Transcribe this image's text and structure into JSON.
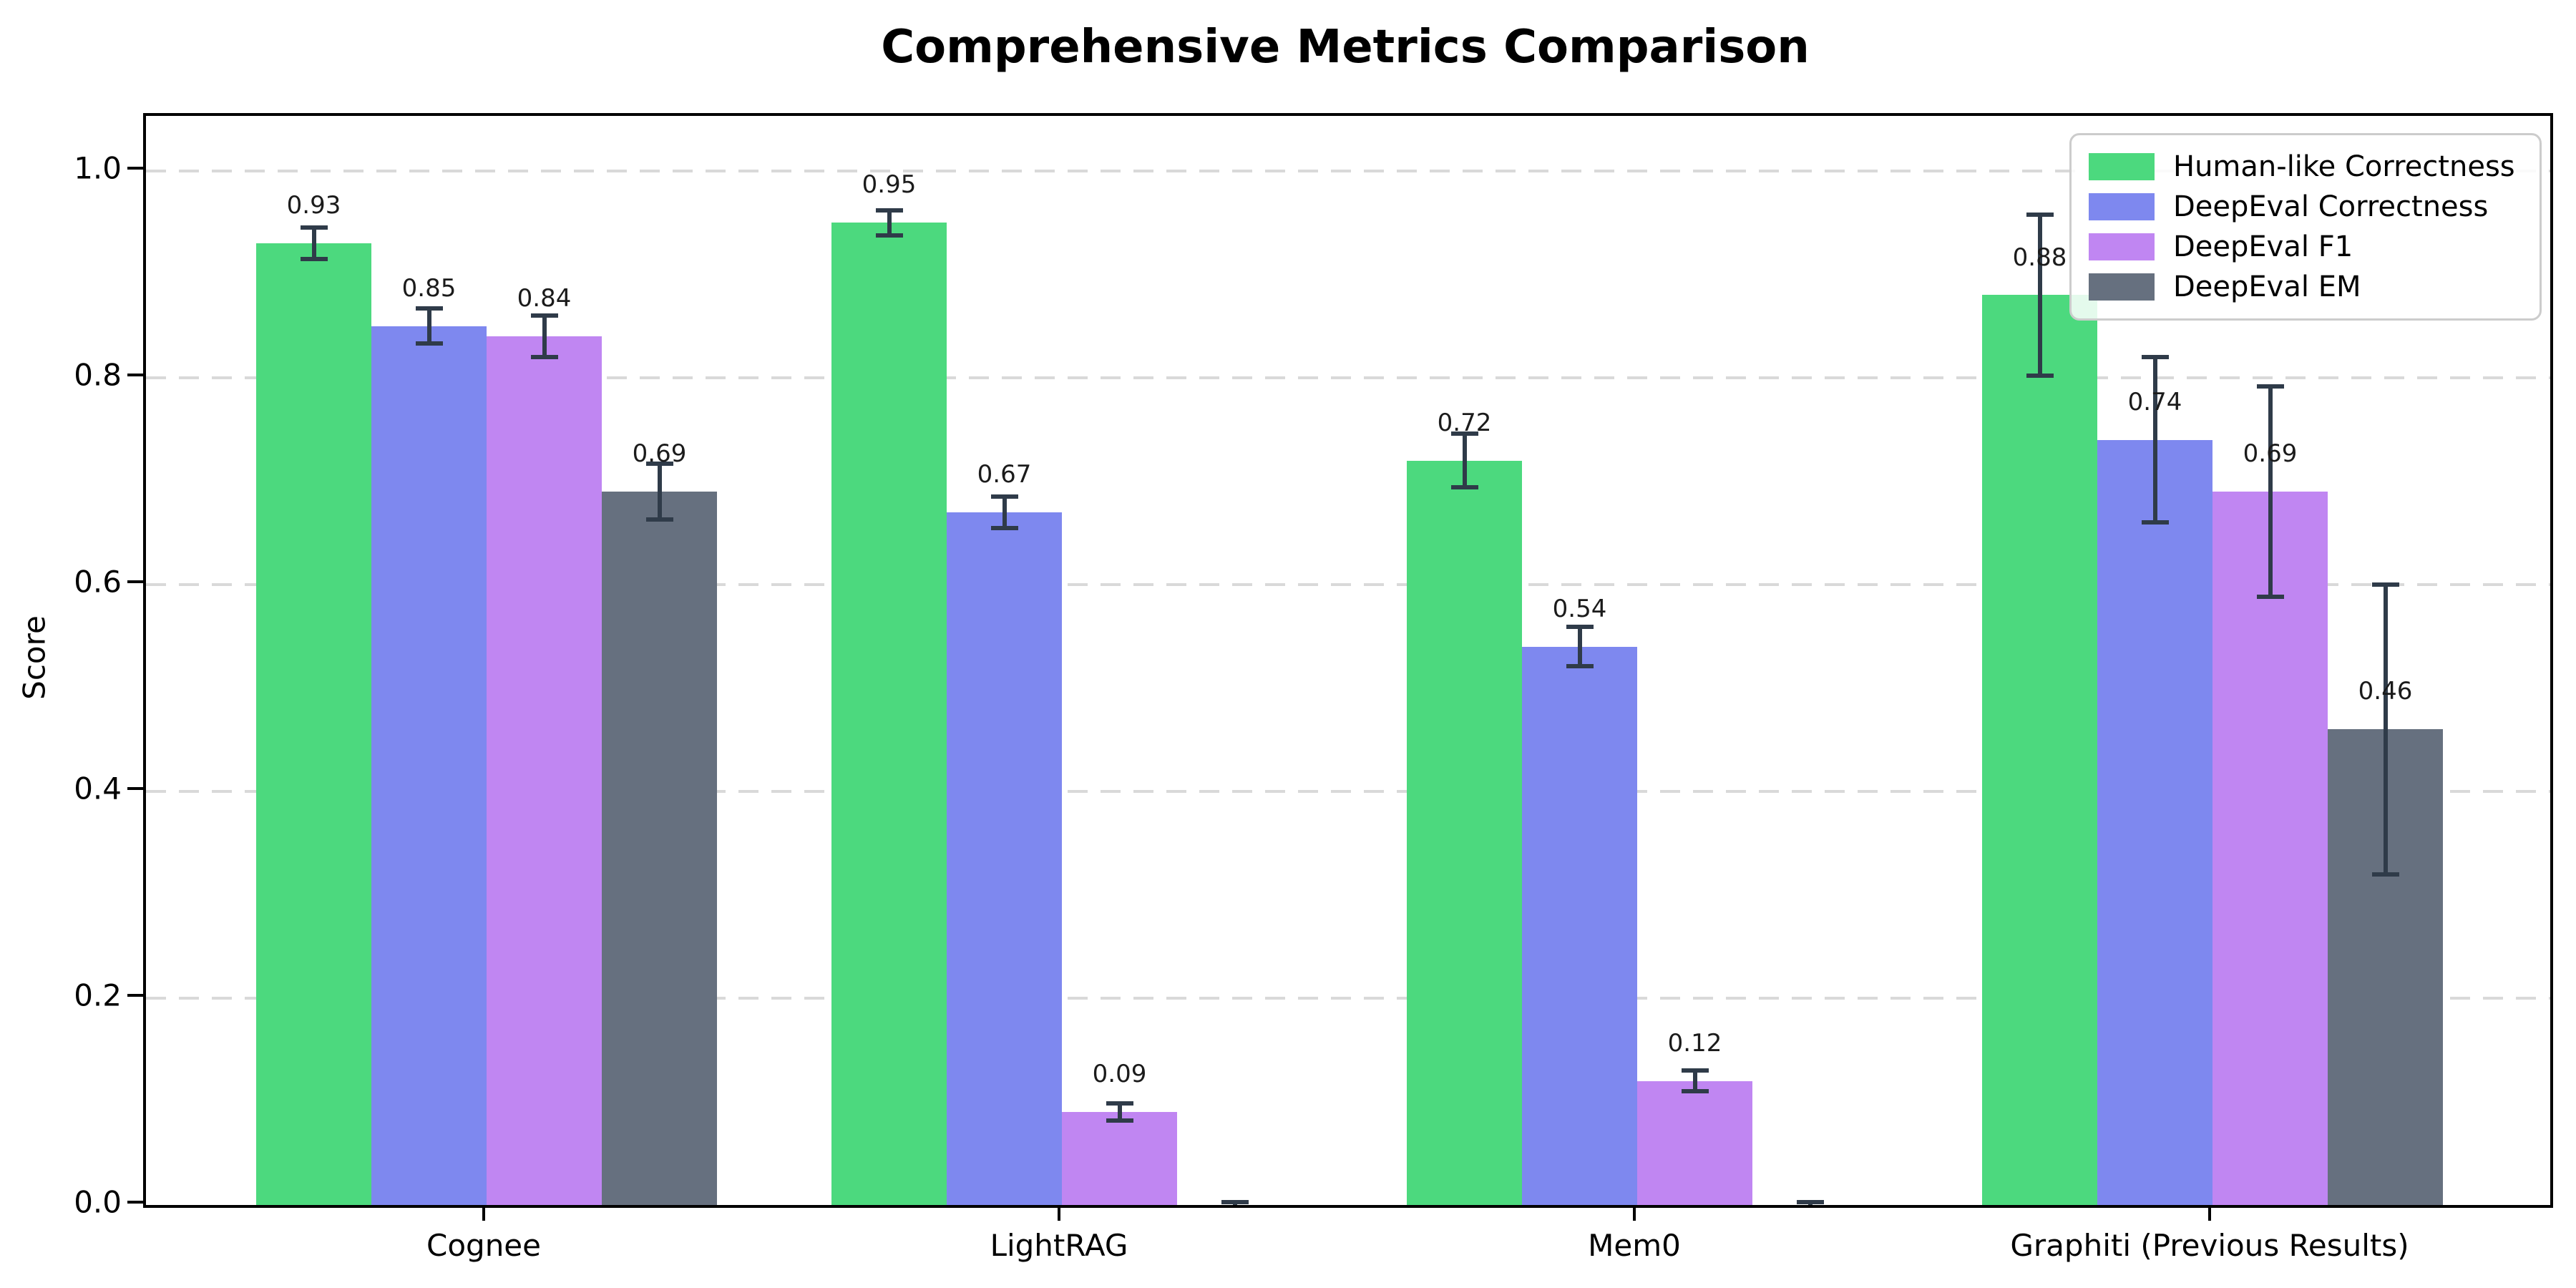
{
  "title": "Comprehensive Metrics Comparison",
  "y_axis": {
    "label": "Score",
    "tick_labels": [
      "0.0",
      "0.2",
      "0.4",
      "0.6",
      "0.8",
      "1.0"
    ]
  },
  "legend": {
    "entries": [
      "Human-like Correctness",
      "DeepEval Correctness",
      "DeepEval F1",
      "DeepEval EM"
    ],
    "position": "upper right"
  },
  "chart_data": {
    "type": "bar",
    "title": "Comprehensive Metrics Comparison",
    "xlabel": "",
    "ylabel": "Score",
    "ylim": [
      0,
      1.05
    ],
    "yticks": [
      0,
      0.2,
      0.4,
      0.6,
      0.8,
      1.0
    ],
    "grid": "horizontal dashed",
    "legend_position": "upper right",
    "categories": [
      "Cognee",
      "LightRAG",
      "Mem0",
      "Graphiti (Previous Results)"
    ],
    "series": [
      {
        "name": "Human-like Correctness",
        "color": "#4cd97e",
        "values": [
          0.93,
          0.95,
          0.72,
          0.88
        ],
        "errors": [
          0.015,
          0.012,
          0.026,
          0.078
        ]
      },
      {
        "name": "DeepEval Correctness",
        "color": "#7e88ef",
        "values": [
          0.85,
          0.67,
          0.54,
          0.74
        ],
        "errors": [
          0.017,
          0.015,
          0.019,
          0.08
        ]
      },
      {
        "name": "DeepEval F1",
        "color": "#c086f2",
        "values": [
          0.84,
          0.09,
          0.12,
          0.69
        ],
        "errors": [
          0.02,
          0.008,
          0.01,
          0.102
        ]
      },
      {
        "name": "DeepEval EM",
        "color": "#66707f",
        "values": [
          0.69,
          0.0,
          0.0,
          0.46
        ],
        "errors": [
          0.027,
          0.003,
          0.003,
          0.14
        ]
      }
    ],
    "value_labels": {
      "format": "two decimals",
      "shown": [
        "0.93",
        "0.85",
        "0.84",
        "0.69",
        "0.95",
        "0.67",
        "0.09",
        "0.72",
        "0.54",
        "0.12",
        "0.88",
        "0.74",
        "0.69",
        "0.46"
      ],
      "zero_bars_unlabeled": true
    }
  },
  "colors": {
    "background": "#ffffff",
    "error_bar": "#2f3b49",
    "gridline": "#d9d9d9",
    "spine": "#000000",
    "legend_border": "#cccccc",
    "label_text": "#1b1b1b"
  }
}
